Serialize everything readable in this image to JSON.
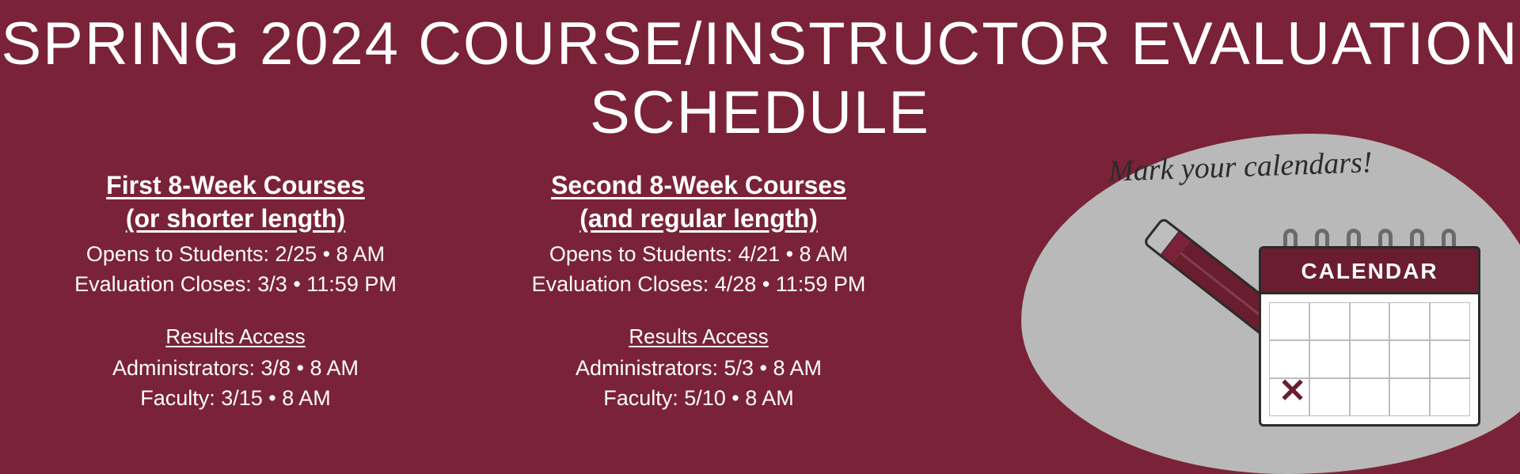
{
  "colors": {
    "background": "#7a2238",
    "text": "#ffffff",
    "blob": "#b9b9b9",
    "calendar_header": "#6b1d30",
    "calendar_body": "#ffffff",
    "grid_line": "#bdbdbd",
    "outline": "#2b2b2b",
    "pencil_body": "#6b1d30",
    "pencil_wood": "#e4cfa0"
  },
  "typography": {
    "title_fontsize": 76,
    "heading_fontsize": 32,
    "body_fontsize": 27,
    "sub_fontsize": 26,
    "mark_fontsize": 38,
    "cal_label_fontsize": 28
  },
  "title": "Spring 2024 Course/Instructor Evaluation Schedule",
  "columns": [
    {
      "heading_line1": "First 8-Week Courses",
      "heading_line2": "(or shorter length)",
      "opens": "Opens to Students: 2/25 • 8 AM",
      "closes": "Evaluation Closes: 3/3 • 11:59 PM",
      "results_label": "Results Access",
      "admins": "Administrators: 3/8 • 8 AM",
      "faculty": "Faculty: 3/15 • 8 AM"
    },
    {
      "heading_line1": "Second 8-Week Courses",
      "heading_line2": "(and regular length)",
      "opens": "Opens to Students: 4/21 • 8 AM",
      "closes": "Evaluation Closes: 4/28 • 11:59 PM",
      "results_label": "Results Access",
      "admins": "Administrators: 5/3 • 8 AM",
      "faculty": "Faculty: 5/10 • 8 AM"
    }
  ],
  "illustration": {
    "mark_text": "Mark your calendars!",
    "calendar_label": "CALENDAR"
  }
}
